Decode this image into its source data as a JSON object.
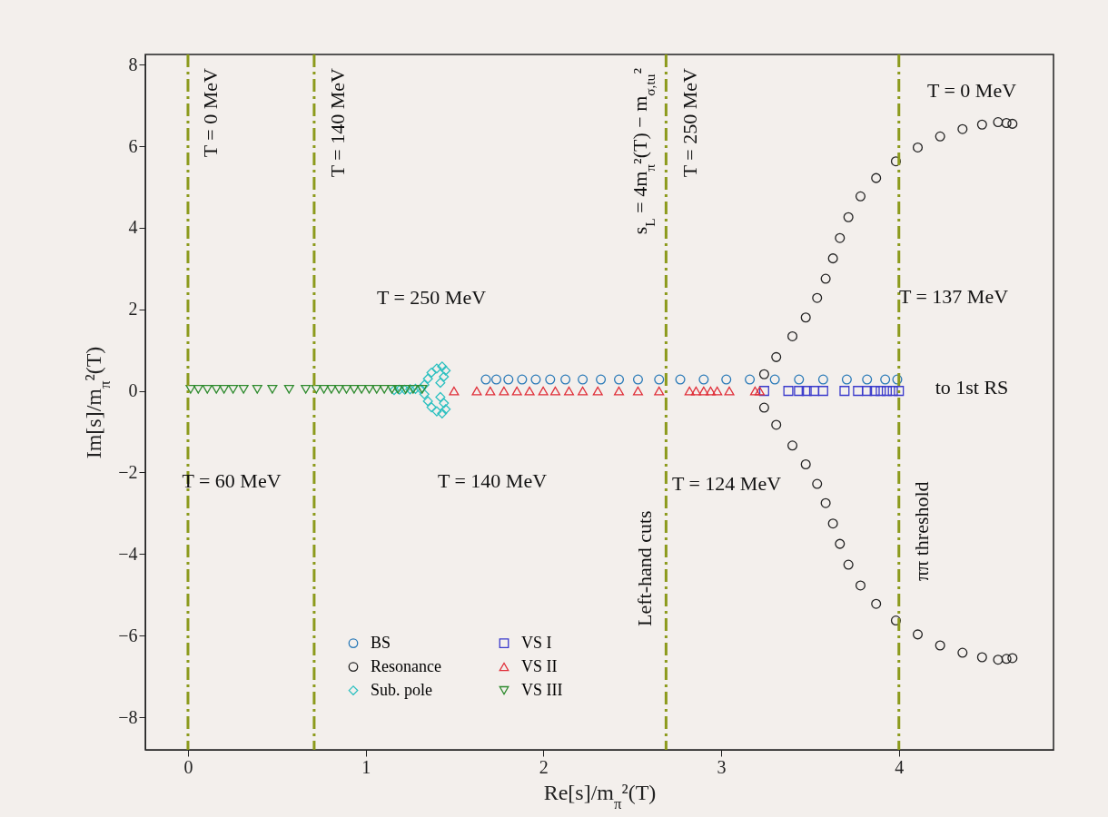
{
  "chart_data": {
    "type": "scatter",
    "xlabel": "Re[s]/m$_{π}$²(T)",
    "ylabel": "Im[s]/m$_{π}$²(T)",
    "xlim": [
      -0.24,
      4.87
    ],
    "ylim": [
      -8.8,
      8.25
    ],
    "xticks": [
      0,
      1,
      2,
      3,
      4
    ],
    "yticks": [
      -8,
      -6,
      -4,
      -2,
      0,
      2,
      4,
      6,
      8
    ],
    "grid": false,
    "legend": "bottom",
    "series": [
      {
        "name": "BS",
        "color": "#2a7ab8",
        "marker": "circle",
        "x": [
          1.676,
          1.735,
          1.803,
          1.88,
          1.957,
          2.038,
          2.124,
          2.221,
          2.323,
          2.425,
          2.532,
          2.651,
          2.77,
          2.902,
          3.029,
          3.161,
          3.302,
          3.438,
          3.574,
          3.707,
          3.821,
          3.923,
          3.991
        ],
        "values": [
          0.28,
          0.28,
          0.28,
          0.28,
          0.28,
          0.28,
          0.28,
          0.28,
          0.28,
          0.28,
          0.28,
          0.28,
          0.28,
          0.28,
          0.28,
          0.28,
          0.28,
          0.28,
          0.28,
          0.28,
          0.28,
          0.28,
          0.28
        ]
      },
      {
        "name": "Resonance",
        "color": "#222222",
        "marker": "circle",
        "x": [
          3.242,
          3.31,
          3.401,
          3.476,
          3.54,
          3.588,
          3.629,
          3.668,
          3.716,
          3.784,
          3.872,
          3.983,
          4.106,
          4.232,
          4.358,
          4.468,
          4.558,
          4.605,
          4.639,
          3.242,
          3.31,
          3.401,
          3.476,
          3.54,
          3.588,
          3.629,
          3.668,
          3.716,
          3.784,
          3.872,
          3.983,
          4.106,
          4.232,
          4.358,
          4.468,
          4.558,
          4.605,
          4.639
        ],
        "values": [
          0.41,
          0.83,
          1.34,
          1.8,
          2.28,
          2.75,
          3.25,
          3.75,
          4.26,
          4.77,
          5.22,
          5.63,
          5.97,
          6.24,
          6.42,
          6.53,
          6.59,
          6.57,
          6.55,
          -0.41,
          -0.83,
          -1.34,
          -1.8,
          -2.28,
          -2.75,
          -3.25,
          -3.75,
          -4.26,
          -4.77,
          -5.22,
          -5.63,
          -5.97,
          -6.24,
          -6.42,
          -6.53,
          -6.59,
          -6.57,
          -6.55
        ]
      },
      {
        "name": "Sub. pole",
        "color": "#2cc0c0",
        "marker": "diamond",
        "x": [
          1.16,
          1.19,
          1.22,
          1.25,
          1.28,
          1.31,
          1.33,
          1.35,
          1.37,
          1.4,
          1.43,
          1.45,
          1.44,
          1.42,
          1.33,
          1.35,
          1.37,
          1.4,
          1.43,
          1.45,
          1.44,
          1.42
        ],
        "values": [
          0.02,
          0.03,
          0.03,
          0.04,
          0.05,
          0.05,
          0.15,
          0.3,
          0.45,
          0.55,
          0.6,
          0.5,
          0.35,
          0.2,
          -0.08,
          -0.25,
          -0.4,
          -0.5,
          -0.55,
          -0.45,
          -0.3,
          -0.15
        ]
      },
      {
        "name": "VS I",
        "color": "#3a3acc",
        "marker": "square",
        "x": [
          3.242,
          3.378,
          3.438,
          3.481,
          3.523,
          3.574,
          3.694,
          3.77,
          3.821,
          3.864,
          3.898,
          3.932,
          3.966,
          4.0
        ],
        "values": [
          0,
          0,
          0,
          0,
          0,
          0,
          0,
          0,
          0,
          0,
          0,
          0,
          0,
          0
        ]
      },
      {
        "name": "VS II",
        "color": "#e0303a",
        "marker": "triangle",
        "x": [
          1.497,
          1.625,
          1.701,
          1.778,
          1.851,
          1.922,
          1.999,
          2.067,
          2.144,
          2.221,
          2.306,
          2.425,
          2.532,
          2.651,
          2.822,
          2.859,
          2.902,
          2.941,
          2.978,
          3.046,
          3.191,
          3.217
        ],
        "values": [
          0,
          0,
          0,
          0,
          0,
          0,
          0,
          0,
          0,
          0,
          0,
          0,
          0,
          0,
          0,
          0,
          0,
          0,
          0,
          0,
          0,
          0
        ]
      },
      {
        "name": "VS III",
        "color": "#2e8b2e",
        "marker": "triangle-down",
        "x": [
          0.015,
          0.058,
          0.109,
          0.16,
          0.203,
          0.254,
          0.313,
          0.39,
          0.475,
          0.569,
          0.663,
          0.722,
          0.765,
          0.807,
          0.85,
          0.892,
          0.935,
          0.977,
          1.02,
          1.062,
          1.105,
          1.148,
          1.182,
          1.225,
          1.267,
          1.318
        ],
        "values": [
          0.04,
          0.04,
          0.04,
          0.04,
          0.04,
          0.04,
          0.04,
          0.04,
          0.04,
          0.04,
          0.04,
          0.04,
          0.04,
          0.04,
          0.04,
          0.04,
          0.04,
          0.04,
          0.04,
          0.04,
          0.04,
          0.04,
          0.04,
          0.04,
          0.04,
          0.04
        ]
      }
    ],
    "ref_lines": [
      {
        "axis": "x",
        "value": 0,
        "color": "#8c9a1c",
        "line_style": "dashed"
      },
      {
        "axis": "x",
        "value": 0.71,
        "color": "#8c9a1c",
        "line_style": "dashed"
      },
      {
        "axis": "x",
        "value": 2.69,
        "color": "#8c9a1c",
        "line_style": "dashed"
      },
      {
        "axis": "x",
        "value": 4,
        "color": "#8c9a1c",
        "line_style": "dashed"
      }
    ],
    "annotations": [
      "T = 0 MeV",
      "T = 140 MeV",
      "T = 250 MeV",
      "s$_{L}$ = 4m$_{π}$²(T) − m$_{σ,tu}$²",
      "Left-hand cuts",
      "ππ threshold",
      "T = 60 MeV",
      "T = 250 MeV",
      "T = 140 MeV",
      "T = 124 MeV",
      "T = 137 MeV",
      "to 1st RS",
      "T = 0 MeV"
    ]
  }
}
